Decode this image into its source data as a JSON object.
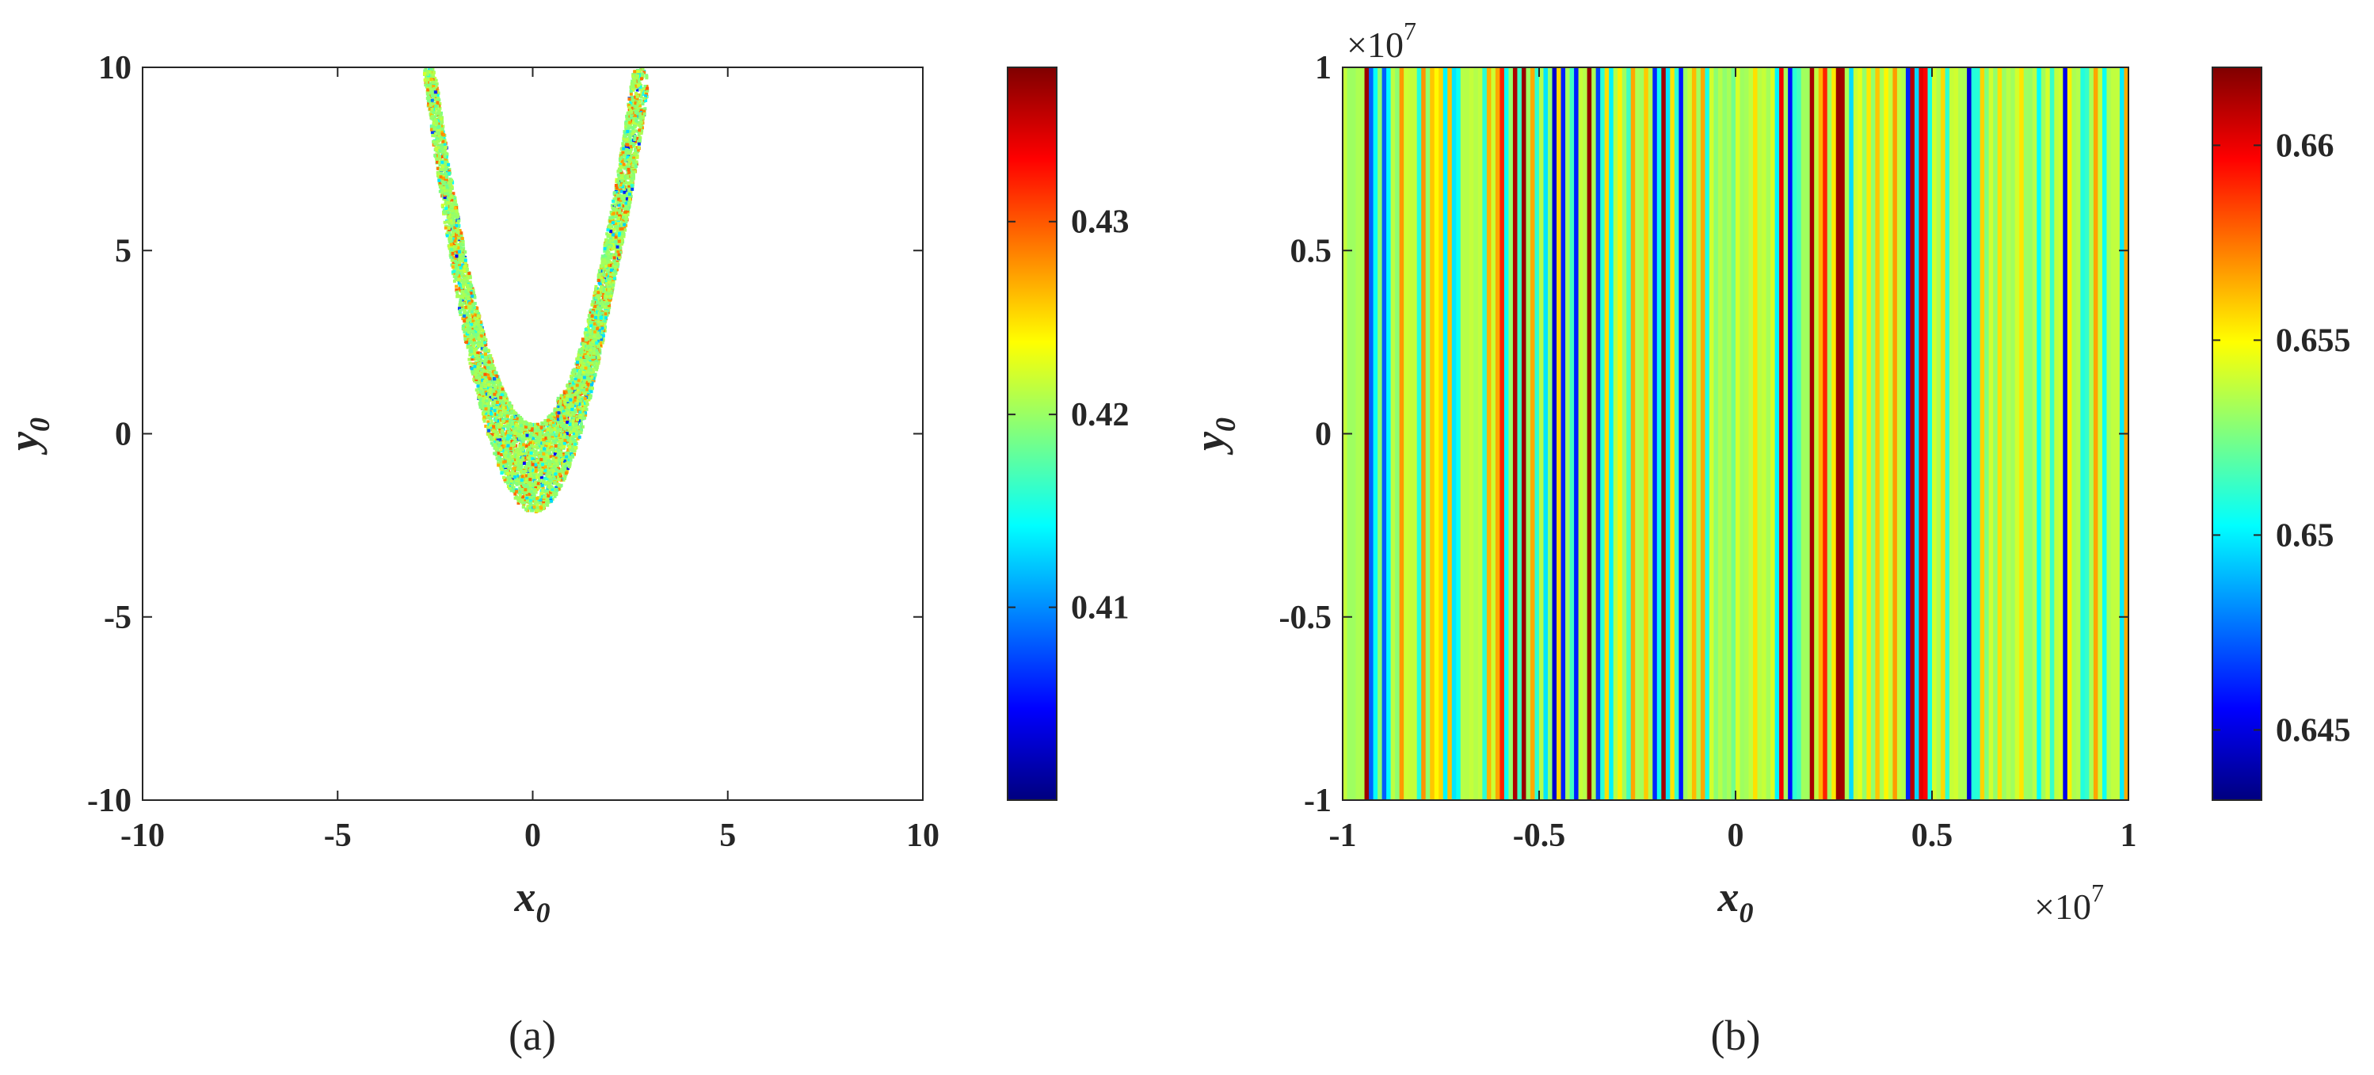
{
  "colors": {
    "axes": "#262626",
    "colormap": "jet",
    "jet_stops": [
      "#00007f",
      "#0000ff",
      "#007fff",
      "#00ffff",
      "#7fff7f",
      "#ffff00",
      "#ff7f00",
      "#ff0000",
      "#7f0000"
    ]
  },
  "chart_data": [
    {
      "type": "heatmap",
      "panel_label": "(a)",
      "xlabel": "x",
      "xlabel_sub": "0",
      "ylabel": "y",
      "ylabel_sub": "0",
      "xlim": [
        -10,
        10
      ],
      "ylim": [
        -10,
        10
      ],
      "xticks": [
        -10,
        -5,
        0,
        5,
        10
      ],
      "xtick_labels": [
        "-10",
        "-5",
        "0",
        "5",
        "10"
      ],
      "yticks": [
        -10,
        -5,
        0,
        5,
        10
      ],
      "ytick_labels": [
        "-10",
        "-5",
        "0",
        "5",
        "10"
      ],
      "region": {
        "description_of_shape": "parabolic band",
        "lower_boundary": "y = 1.5*x^2 - 2.1",
        "upper_boundary": "y = 1.5*x^2 + 0.3",
        "x_range": [
          -2.9,
          2.9
        ],
        "outer_branch_right": "y = 1.5*(x-0.45)^2 + 0.3"
      },
      "value_range": [
        0.4,
        0.438
      ],
      "dominant_value": 0.42,
      "colorbar": {
        "clim": [
          0.4,
          0.438
        ],
        "ticks": [
          0.41,
          0.42,
          0.43
        ],
        "tick_labels": [
          "0.41",
          "0.42",
          "0.43"
        ]
      }
    },
    {
      "type": "heatmap",
      "panel_label": "(b)",
      "xlabel": "x",
      "xlabel_sub": "0",
      "ylabel": "y",
      "ylabel_sub": "0",
      "xlim": [
        -1,
        1
      ],
      "ylim": [
        -1,
        1
      ],
      "x_multiplier": "×10",
      "x_multiplier_exp": "7",
      "y_multiplier": "×10",
      "y_multiplier_exp": "7",
      "xticks": [
        -1,
        -0.5,
        0,
        0.5,
        1
      ],
      "xtick_labels": [
        "-1",
        "-0.5",
        "0",
        "0.5",
        "1"
      ],
      "yticks": [
        -1,
        -0.5,
        0,
        0.5,
        1
      ],
      "ytick_labels": [
        "-1",
        "-0.5",
        "0",
        "0.5",
        "1"
      ],
      "pattern": "vertical stripes (value depends on x0 only)",
      "stripe_count": 180,
      "value_range": [
        0.6432,
        0.662
      ],
      "dominant_value": 0.6535,
      "colorbar": {
        "clim": [
          0.6432,
          0.662
        ],
        "ticks": [
          0.645,
          0.65,
          0.655,
          0.66
        ],
        "tick_labels": [
          "0.645",
          "0.65",
          "0.655",
          "0.66"
        ]
      }
    }
  ]
}
